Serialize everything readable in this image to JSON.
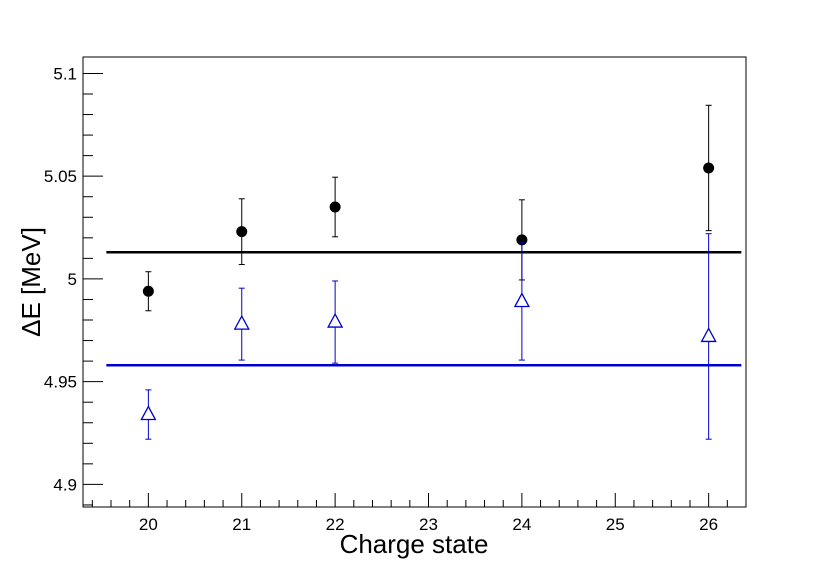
{
  "chart_data": {
    "type": "scatter",
    "xlabel": "Charge state",
    "ylabel": "ΔE [MeV]",
    "xlim": [
      19.3,
      26.4
    ],
    "ylim": [
      4.889,
      5.108
    ],
    "x_ticks": [
      20,
      21,
      22,
      23,
      24,
      25,
      26
    ],
    "x_tick_labels": [
      "20",
      "21",
      "22",
      "23",
      "24",
      "25",
      "26"
    ],
    "y_ticks": [
      4.9,
      4.95,
      5.0,
      5.05,
      5.1
    ],
    "y_tick_labels": [
      "4.9",
      "4.95",
      "5",
      "5.05",
      "5.1"
    ],
    "grid": false,
    "series": [
      {
        "marker": "filled-circle",
        "color": "#000000",
        "points": [
          {
            "x": 20,
            "y": 4.994,
            "err": 0.0095
          },
          {
            "x": 21,
            "y": 5.023,
            "err": 0.016
          },
          {
            "x": 22,
            "y": 5.035,
            "err": 0.0145
          },
          {
            "x": 24,
            "y": 5.019,
            "err": 0.0195
          },
          {
            "x": 26,
            "y": 5.054,
            "err": 0.0305
          }
        ],
        "mean_line": 5.013
      },
      {
        "marker": "open-triangle",
        "color": "#0000cc",
        "points": [
          {
            "x": 20,
            "y": 4.934,
            "err": 0.012
          },
          {
            "x": 21,
            "y": 4.978,
            "err": 0.0175
          },
          {
            "x": 22,
            "y": 4.979,
            "err": 0.02
          },
          {
            "x": 24,
            "y": 4.989,
            "err": 0.0285
          },
          {
            "x": 26,
            "y": 4.972,
            "err": 0.05
          }
        ],
        "mean_line": 4.958
      }
    ]
  }
}
